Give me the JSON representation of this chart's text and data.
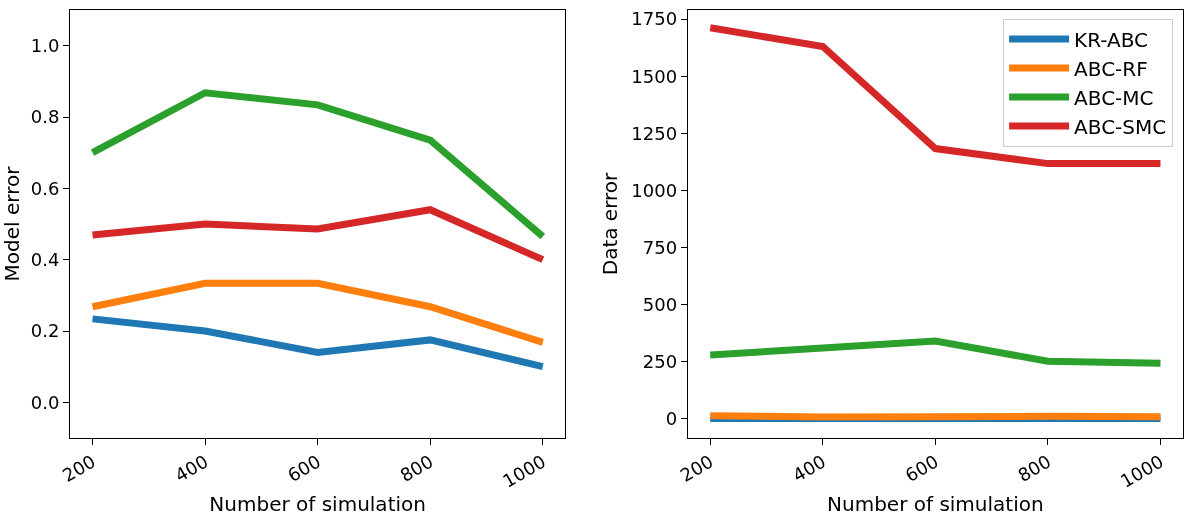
{
  "chart_data": [
    {
      "type": "line",
      "xlabel": "Number of simulation",
      "ylabel": "Model error",
      "x": [
        200,
        400,
        600,
        800,
        1000
      ],
      "xlim": [
        160,
        1040
      ],
      "xticks": [
        200,
        400,
        600,
        800,
        1000
      ],
      "ylim": [
        -0.1,
        1.1
      ],
      "yticks": [
        {
          "value": 0.0,
          "label": "0.0"
        },
        0.2,
        0.4,
        0.6,
        0.8,
        {
          "value": 1.0,
          "label": "1.0"
        }
      ],
      "legend": false,
      "series": [
        {
          "color": "#1f77b4",
          "values": [
            0.234,
            0.2,
            0.14,
            0.175,
            0.1
          ]
        },
        {
          "color": "#ff7f0e",
          "values": [
            0.268,
            0.334,
            0.334,
            0.268,
            0.168
          ]
        },
        {
          "color": "#2ca02c",
          "values": [
            0.7,
            0.868,
            0.834,
            0.735,
            0.465
          ]
        },
        {
          "color": "#d62728",
          "values": [
            0.469,
            0.5,
            0.486,
            0.54,
            0.4
          ]
        }
      ]
    },
    {
      "type": "line",
      "xlabel": "Number of simulation",
      "ylabel": "Data error",
      "x": [
        200,
        400,
        600,
        800,
        1000
      ],
      "xlim": [
        160,
        1040
      ],
      "xticks": [
        200,
        400,
        600,
        800,
        1000
      ],
      "ylim": [
        -85,
        1790
      ],
      "yticks": [
        0,
        250,
        500,
        750,
        1000,
        1250,
        1500,
        1750
      ],
      "legend": "top right",
      "series": [
        {
          "name": "KR-ABC",
          "color": "#1f77b4",
          "values": [
            0,
            0,
            0,
            0,
            0
          ]
        },
        {
          "name": "ABC-RF",
          "color": "#ff7f0e",
          "values": [
            13,
            7,
            8,
            10,
            8
          ]
        },
        {
          "name": "ABC-MC",
          "color": "#2ca02c",
          "values": [
            279,
            309,
            340,
            251,
            243
          ]
        },
        {
          "name": "ABC-SMC",
          "color": "#d62728",
          "values": [
            1712,
            1630,
            1183,
            1117,
            1117
          ]
        }
      ]
    }
  ]
}
